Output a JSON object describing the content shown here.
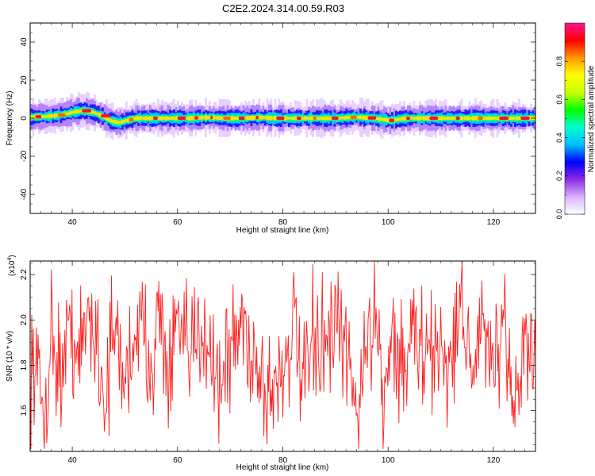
{
  "title": "C2E2.2024.314.00.59.R03",
  "chart_data": [
    {
      "type": "heatmap",
      "xlabel": "Height of straight line (km)",
      "ylabel": "Frequency (Hz)",
      "xlim": [
        32,
        128
      ],
      "ylim": [
        -50,
        50
      ],
      "x_ticks": [
        40,
        60,
        80,
        100,
        120
      ],
      "y_ticks": [
        -40,
        -20,
        0,
        20,
        40
      ],
      "band_center_hz": [
        0.6,
        0.8,
        1.0,
        1.5,
        2.2,
        3.4,
        4.0,
        3.2,
        1.4,
        -1.2,
        -2.4,
        -1.0,
        0.0,
        0.0,
        0.0,
        0.0,
        0.0,
        0.0,
        0.0,
        0.2,
        0.4,
        0.3,
        0.0,
        0.0,
        0.0,
        0.2,
        0.4,
        0.2,
        0.0,
        0.0,
        0.0,
        0.0,
        0.0,
        0.0,
        0.0,
        0.0,
        0.3,
        0.6,
        0.3,
        0.0,
        -0.6,
        -1.2,
        -0.4,
        0.0,
        0.0,
        0.0,
        0.0,
        0.0,
        0.0,
        0.0,
        0.0,
        0.0,
        0.0,
        0.0,
        0.0,
        0.0,
        0.0,
        0.0
      ],
      "band_x_start_km": 32,
      "band_x_step_km": 1.6667,
      "peak_amplitude_near_zero": true,
      "colorbar": {
        "label": "Normalized spectral amplitude",
        "range": [
          0.0,
          1.0
        ],
        "ticks": [
          "0.0",
          "0.2",
          "0.4",
          "0.6",
          "0.8"
        ],
        "colors": [
          "#ffffff",
          "#d9b3ff",
          "#8a2be2",
          "#0000ff",
          "#00bfff",
          "#00ffcc",
          "#00ff00",
          "#ccff00",
          "#ffff00",
          "#ff9900",
          "#ff0000",
          "#ff1493"
        ]
      }
    },
    {
      "type": "line",
      "xlabel": "Height of straight line (km)",
      "ylabel": "SNR (10 * v/v)",
      "y_multiplier": "(x10^4)",
      "xlim": [
        32,
        128
      ],
      "ylim": [
        1.42,
        2.26
      ],
      "x_ticks": [
        40,
        60,
        80,
        100,
        120
      ],
      "y_ticks": [
        "1.6",
        "1.8",
        "2.0",
        "2.2"
      ],
      "line_color": "#ff2020",
      "approx_mean": 1.82,
      "approx_min": 1.43,
      "approx_max": 2.26,
      "sample_points": [
        [
          33,
          1.8
        ],
        [
          34,
          1.52
        ],
        [
          35,
          1.48
        ],
        [
          36,
          2.05
        ],
        [
          38,
          1.7
        ],
        [
          40,
          2.1
        ],
        [
          41,
          1.75
        ],
        [
          43,
          2.22
        ],
        [
          45,
          1.95
        ],
        [
          46,
          1.5
        ],
        [
          48,
          2.05
        ],
        [
          50,
          1.62
        ],
        [
          52,
          2.1
        ],
        [
          55,
          1.85
        ],
        [
          57,
          2.22
        ],
        [
          58,
          1.6
        ],
        [
          60,
          2.05
        ],
        [
          62,
          1.78
        ],
        [
          65,
          2.12
        ],
        [
          68,
          1.62
        ],
        [
          70,
          1.9
        ],
        [
          72,
          2.1
        ],
        [
          75,
          1.82
        ],
        [
          77,
          1.53
        ],
        [
          80,
          1.75
        ],
        [
          82,
          2.1
        ],
        [
          84,
          1.55
        ],
        [
          86,
          2.05
        ],
        [
          88,
          1.85
        ],
        [
          90,
          2.05
        ],
        [
          92,
          1.9
        ],
        [
          94,
          1.43
        ],
        [
          96,
          1.95
        ],
        [
          98,
          2.26
        ],
        [
          99,
          1.55
        ],
        [
          101,
          2.05
        ],
        [
          103,
          1.7
        ],
        [
          105,
          2.1
        ],
        [
          107,
          1.8
        ],
        [
          110,
          1.95
        ],
        [
          112,
          1.75
        ],
        [
          114,
          2.26
        ],
        [
          116,
          1.78
        ],
        [
          118,
          2.05
        ],
        [
          120,
          1.8
        ],
        [
          122,
          1.92
        ],
        [
          124,
          1.5
        ],
        [
          126,
          2.0
        ],
        [
          127,
          1.85
        ]
      ]
    }
  ]
}
